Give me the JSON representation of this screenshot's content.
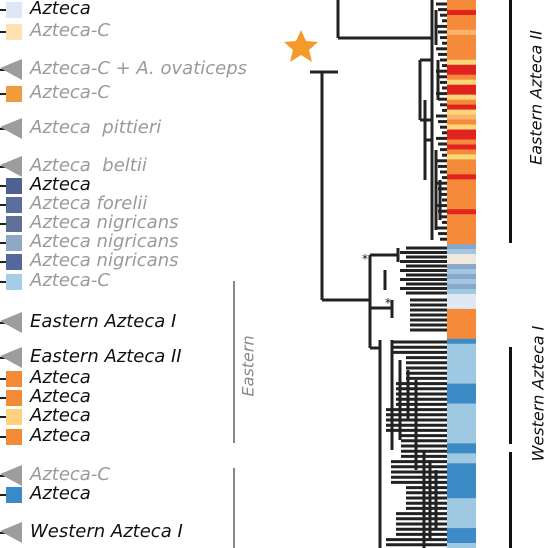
{
  "legend_rows": [
    {
      "text": "Azteca",
      "style": "dark",
      "swatch": "#dce8f4",
      "wedge": false
    },
    {
      "text": "Azteca-C",
      "style": "grey",
      "swatch": "#fde3b2",
      "wedge": false
    },
    {
      "text": "Azteca-C + A. ovaticeps",
      "style": "grey",
      "swatch": null,
      "wedge": true
    },
    {
      "text": "Azteca-C",
      "style": "grey",
      "swatch": "#f59a3e",
      "wedge": false
    },
    {
      "text": "Azteca  pittieri",
      "style": "grey",
      "swatch": null,
      "wedge": true
    },
    {
      "text": "Azteca  beltii",
      "style": "grey",
      "swatch": null,
      "wedge": true
    },
    {
      "text": "Azteca",
      "style": "dark",
      "swatch": "#4f6192",
      "wedge": false
    },
    {
      "text": "Azteca forelii",
      "style": "grey",
      "swatch": "#5b6e9c",
      "wedge": false
    },
    {
      "text": "Azteca nigricans",
      "style": "grey",
      "swatch": "#5e6f99",
      "wedge": false
    },
    {
      "text": "Azteca nigricans",
      "style": "grey",
      "swatch": "#8fa7c2",
      "wedge": false
    },
    {
      "text": "Azteca nigricans",
      "style": "grey",
      "swatch": "#55679b",
      "wedge": false
    },
    {
      "text": "Azteca-C",
      "style": "grey",
      "swatch": "#a7cde6",
      "wedge": false
    },
    {
      "text": "Eastern Azteca I",
      "style": "dark",
      "swatch": null,
      "wedge": true
    },
    {
      "text": "Eastern Azteca II",
      "style": "dark",
      "swatch": null,
      "wedge": true
    },
    {
      "text": "Azteca",
      "style": "dark",
      "swatch": "#f38a36",
      "wedge": false
    },
    {
      "text": "Azteca",
      "style": "dark",
      "swatch": "#f38a36",
      "wedge": false
    },
    {
      "text": "Azteca",
      "style": "dark",
      "swatch": "#fdd27a",
      "wedge": false
    },
    {
      "text": "Azteca",
      "style": "dark",
      "swatch": "#f38a36",
      "wedge": false
    },
    {
      "text": "Azteca-C",
      "style": "grey",
      "swatch": null,
      "wedge": true
    },
    {
      "text": "Azteca",
      "style": "dark",
      "swatch": "#3a8ac8",
      "wedge": false
    },
    {
      "text": "Western Azteca I",
      "style": "dark",
      "swatch": null,
      "wedge": true
    }
  ],
  "group_labels": {
    "eastern": "Eastern",
    "eastern_azteca_ii": "Eastern Azteca II",
    "western_azteca_i": "Western Azteca I"
  },
  "node_markers": [
    "*",
    "*"
  ],
  "colors": {
    "star": "#f39a2a",
    "tree": "#222222",
    "wedge": "#9d9d9d",
    "orange": "#f58b3a",
    "red": "#e0231f",
    "yellow": "#fbd77a",
    "light_orange": "#fbb46b",
    "blue_dark": "#3d8bc6",
    "blue_light": "#9fc9e3",
    "slate": "#8aa6c8",
    "pale": "#efe8dc"
  },
  "heat_column": [
    "#f58b3a",
    "#f58b3a",
    "#e0231f",
    "#f58b3a",
    "#f58b3a",
    "#f58b3a",
    "#fbb46b",
    "#f58b3a",
    "#f58b3a",
    "#f58b3a",
    "#f58b3a",
    "#f58b3a",
    "#fbd77a",
    "#e0231f",
    "#e0231f",
    "#f58b3a",
    "#fbd77a",
    "#e0231f",
    "#e0231f",
    "#fbd77a",
    "#f58b3a",
    "#e0231f",
    "#fbd77a",
    "#fbb46b",
    "#f58b3a",
    "#fbd77a",
    "#e0231f",
    "#e0231f",
    "#f58b3a",
    "#e0231f",
    "#f58b3a",
    "#fbd77a",
    "#f58b3a",
    "#f58b3a",
    "#f58b3a",
    "#e0231f",
    "#f58b3a",
    "#f58b3a",
    "#f58b3a",
    "#f58b3a",
    "#f58b3a",
    "#f58b3a",
    "#e0231f",
    "#f58b3a",
    "#f58b3a",
    "#f58b3a",
    "#f58b3a",
    "#f58b3a",
    "#f58b3a",
    "#8aa6c8",
    "#9fc9e3",
    "#efe8dc",
    "#efe8dc",
    "#8aa6c8",
    "#9fc9e3",
    "#8aa6c8",
    "#9fc9e3",
    "#8aa6c8",
    "#9fc9e3",
    "#dfe9f5",
    "#dfe9f5",
    "#dfe9f5",
    "#f58b3a",
    "#f58b3a",
    "#f58b3a",
    "#f58b3a",
    "#f58b3a",
    "#f58b3a",
    "#3d8bc6",
    "#9fc9e3",
    "#9fc9e3",
    "#9fc9e3",
    "#9fc9e3",
    "#9fc9e3",
    "#9fc9e3",
    "#9fc9e3",
    "#9fc9e3",
    "#3d8bc6",
    "#3d8bc6",
    "#3d8bc6",
    "#3d8bc6",
    "#9fc9e3",
    "#9fc9e3",
    "#9fc9e3",
    "#9fc9e3",
    "#9fc9e3",
    "#9fc9e3",
    "#9fc9e3",
    "#9fc9e3",
    "#3d8bc6",
    "#3d8bc6",
    "#9fc9e3",
    "#9fc9e3",
    "#3d8bc6",
    "#3d8bc6",
    "#3d8bc6",
    "#3d8bc6",
    "#3d8bc6",
    "#3d8bc6",
    "#3d8bc6",
    "#9fc9e3",
    "#9fc9e3",
    "#9fc9e3",
    "#9fc9e3",
    "#9fc9e3",
    "#9fc9e3",
    "#3d8bc6",
    "#3d8bc6",
    "#3d8bc6",
    "#9fc9e3"
  ]
}
